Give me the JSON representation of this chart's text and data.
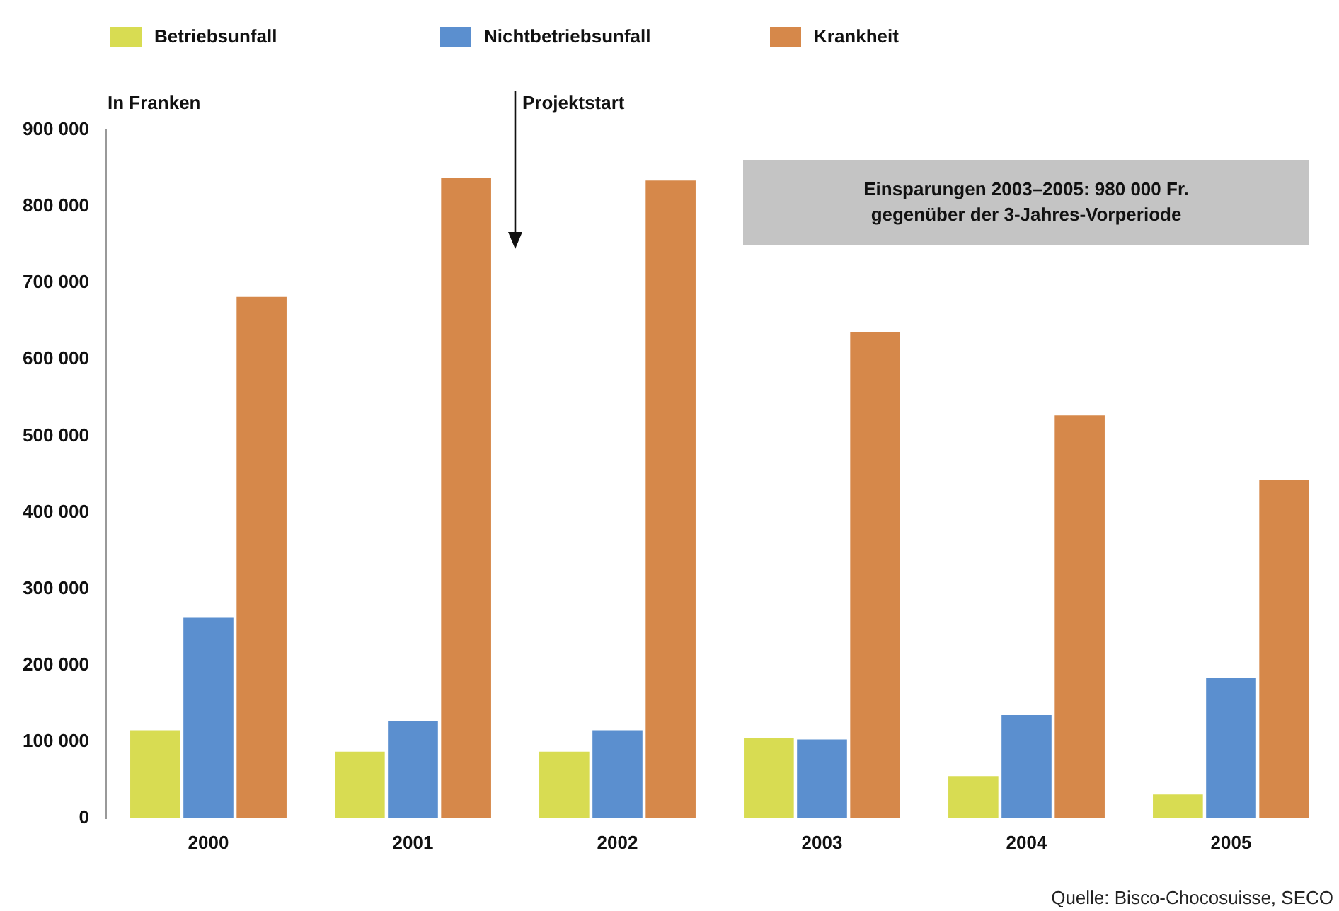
{
  "chart_data": {
    "type": "bar",
    "ylabel": "In Franken",
    "categories": [
      "2000",
      "2001",
      "2002",
      "2003",
      "2004",
      "2005"
    ],
    "series": [
      {
        "name": "Betriebsunfall",
        "color": "#d8dc52",
        "values": [
          115000,
          87000,
          87000,
          105000,
          55000,
          31000
        ]
      },
      {
        "name": "Nichtbetriebsunfall",
        "color": "#5b8fcf",
        "values": [
          262000,
          127000,
          115000,
          103000,
          135000,
          183000
        ]
      },
      {
        "name": "Krankheit",
        "color": "#d6884a",
        "values": [
          682000,
          837000,
          834000,
          636000,
          527000,
          442000
        ]
      }
    ],
    "ylim": [
      0,
      900000
    ],
    "yticks": [
      {
        "value": 0,
        "label": "0"
      },
      {
        "value": 100000,
        "label": "100 000"
      },
      {
        "value": 200000,
        "label": "200 000"
      },
      {
        "value": 300000,
        "label": "300 000"
      },
      {
        "value": 400000,
        "label": "400 000"
      },
      {
        "value": 500000,
        "label": "500 000"
      },
      {
        "value": 600000,
        "label": "600 000"
      },
      {
        "value": 700000,
        "label": "700 000"
      },
      {
        "value": 800000,
        "label": "800 000"
      },
      {
        "value": 900000,
        "label": "900 000"
      }
    ],
    "grid": false,
    "legend": "top left",
    "annotations": [
      "Projektstart",
      "Einsparungen 2003–2005: 980 000 Fr.\ngegenüber der 3-Jahres-Vorperiode",
      "Quelle: Bisco-Chocosuisse, SECO"
    ]
  }
}
